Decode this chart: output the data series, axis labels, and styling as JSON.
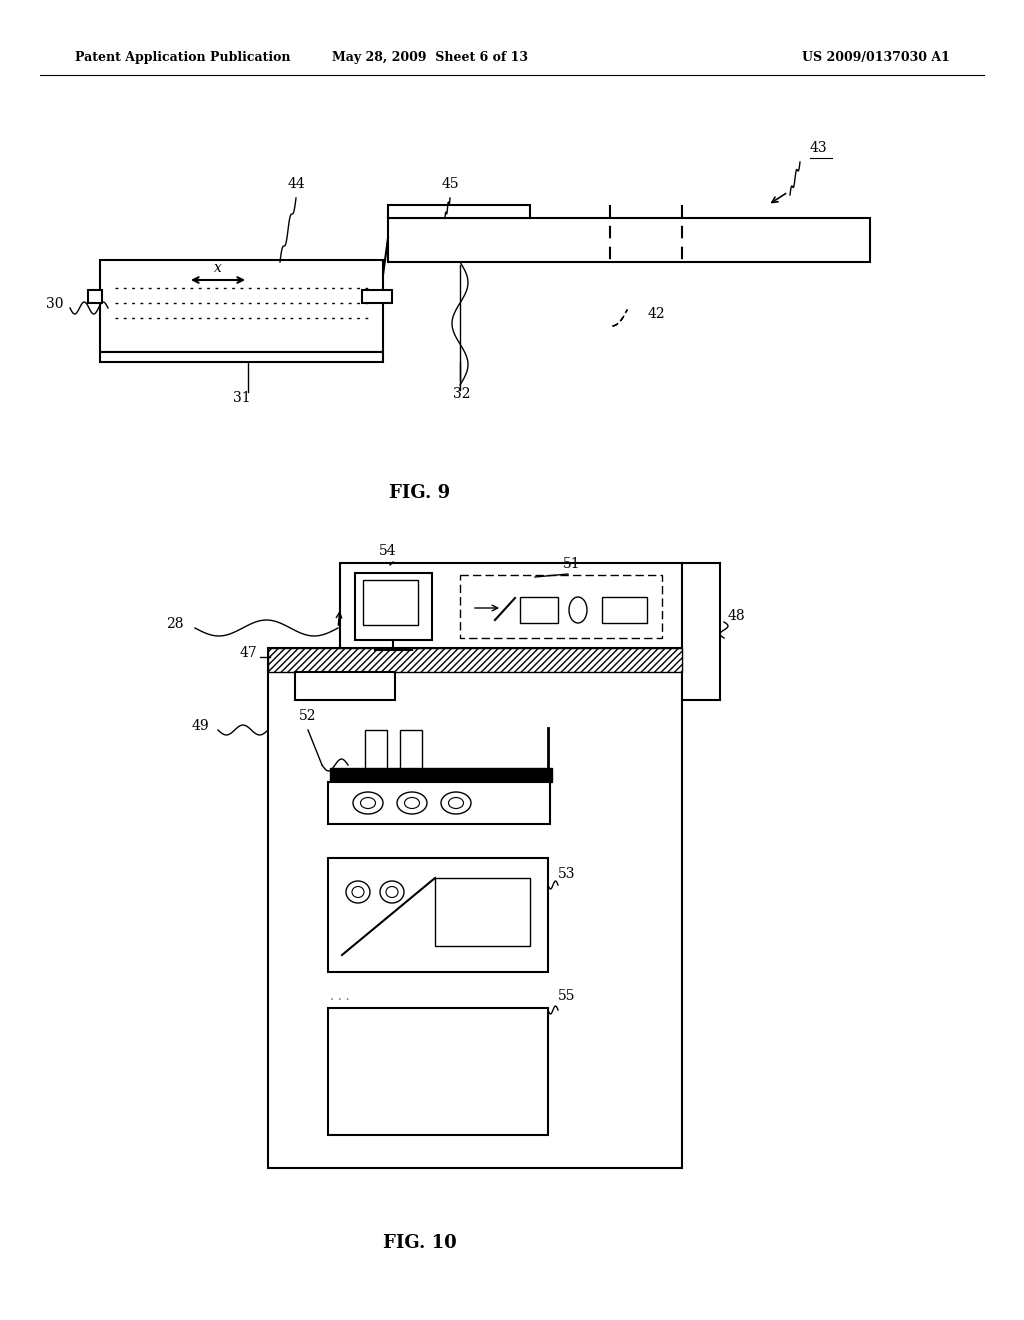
{
  "bg_color": "#ffffff",
  "header_left": "Patent Application Publication",
  "header_mid": "May 28, 2009  Sheet 6 of 13",
  "header_right": "US 2009/0137030 A1",
  "fig9_label": "FIG. 9",
  "fig10_label": "FIG. 10"
}
